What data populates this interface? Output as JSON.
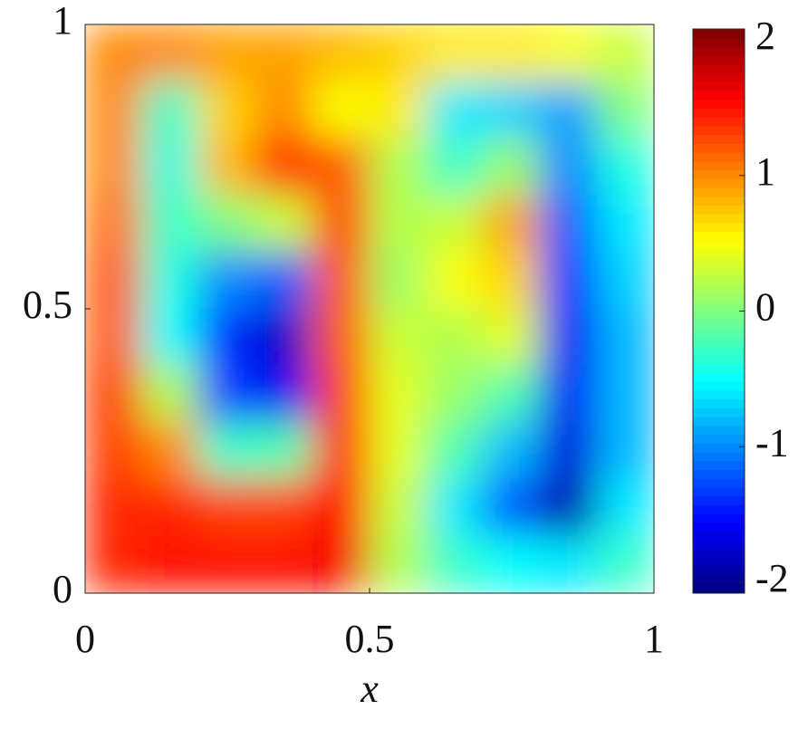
{
  "chart_data": {
    "type": "heatmap",
    "xlabel": "x",
    "colormap": "jet",
    "x": [
      0.05,
      0.15,
      0.25,
      0.35,
      0.45,
      0.55,
      0.65,
      0.75,
      0.85,
      0.95
    ],
    "y": [
      0.95,
      0.85,
      0.75,
      0.65,
      0.55,
      0.45,
      0.35,
      0.25,
      0.15,
      0.05
    ],
    "z": [
      [
        1.0,
        1.0,
        0.9,
        0.9,
        0.8,
        0.7,
        0.6,
        0.6,
        0.5,
        0.3
      ],
      [
        1.0,
        -0.3,
        0.7,
        1.0,
        0.5,
        0.6,
        -0.6,
        -0.7,
        -0.9,
        0.0
      ],
      [
        1.0,
        -0.4,
        0.8,
        1.4,
        1.2,
        0.2,
        -0.3,
        0.1,
        -1.0,
        -0.4
      ],
      [
        1.1,
        -0.3,
        0.0,
        0.3,
        1.3,
        0.2,
        0.3,
        0.9,
        -1.2,
        -0.6
      ],
      [
        1.2,
        -0.4,
        -1.0,
        -1.2,
        1.2,
        0.1,
        0.5,
        0.7,
        -1.4,
        -0.7
      ],
      [
        1.2,
        -0.5,
        -1.4,
        -1.8,
        1.2,
        0.3,
        0.2,
        0.4,
        -1.6,
        -0.8
      ],
      [
        1.3,
        0.2,
        -1.3,
        -1.6,
        1.3,
        0.4,
        0.1,
        -0.2,
        -1.6,
        -0.8
      ],
      [
        1.3,
        1.0,
        -0.3,
        -0.2,
        1.4,
        0.4,
        -0.2,
        -0.8,
        -1.7,
        -0.8
      ],
      [
        1.4,
        1.4,
        1.3,
        1.3,
        1.5,
        0.3,
        -0.6,
        -1.2,
        -1.9,
        -0.6
      ],
      [
        1.4,
        1.5,
        1.5,
        1.5,
        1.6,
        0.2,
        -0.3,
        -0.5,
        -0.6,
        -0.3
      ]
    ],
    "xlim": [
      0,
      1
    ],
    "ylim": [
      0,
      1
    ],
    "xticks": [
      0,
      0.5,
      1
    ],
    "yticks": [
      0,
      0.5,
      1
    ],
    "clim": [
      -2.08,
      2.08
    ],
    "cticks": [
      -2,
      -1,
      0,
      1,
      2
    ]
  }
}
